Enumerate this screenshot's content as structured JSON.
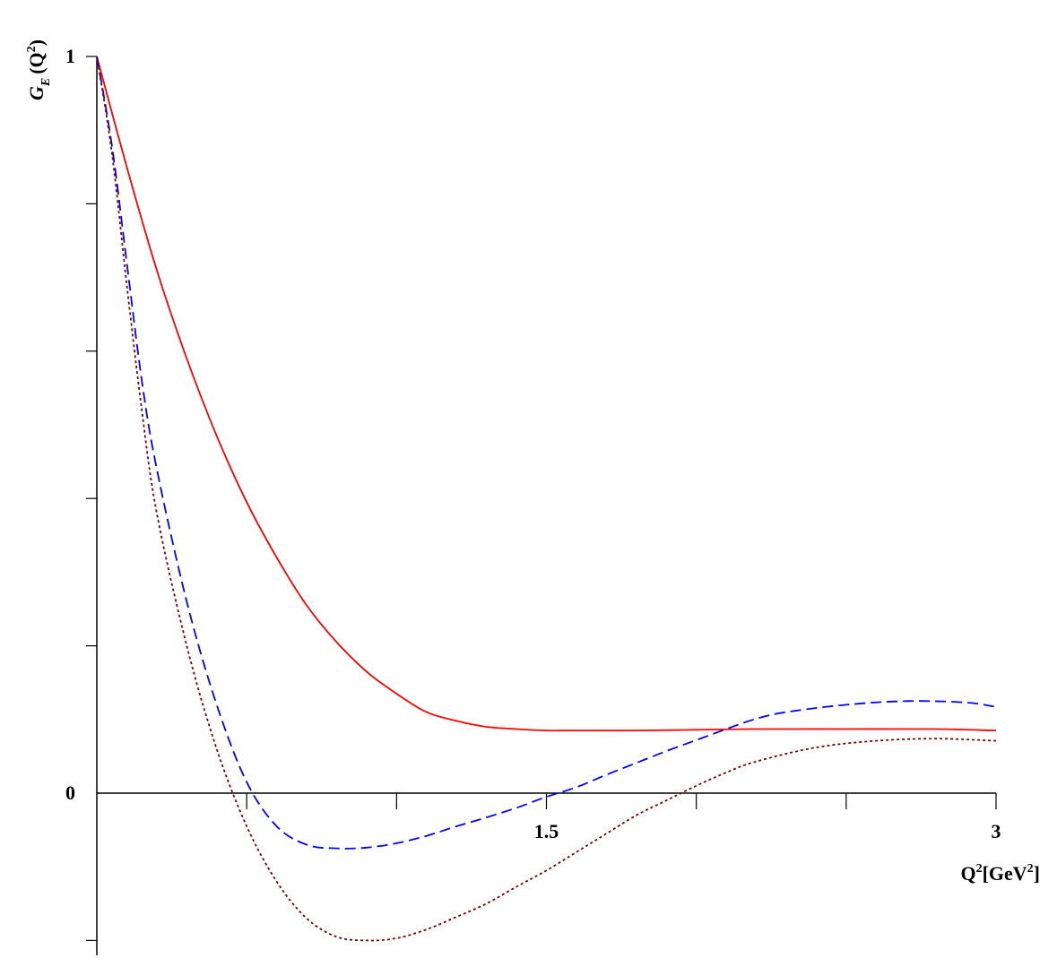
{
  "chart_data": {
    "type": "line",
    "title": "",
    "xlabel": {
      "base": "Q",
      "sup1": "2",
      "mid": "[GeV",
      "sup2": "2",
      "end": "]"
    },
    "ylabel": {
      "base": "G",
      "sub": "E",
      "open": "(Q",
      "sup": "2",
      "close": ")"
    },
    "xlim": [
      0,
      3
    ],
    "ylim": [
      -0.22,
      1
    ],
    "x_ticks": [
      0.5,
      1.0,
      1.5,
      2.0,
      2.5,
      3.0
    ],
    "x_tick_labels": [
      {
        "value": 1.5,
        "label": "1.5"
      },
      {
        "value": 3.0,
        "label": "3"
      }
    ],
    "y_ticks": [
      -0.2,
      0.2,
      0.4,
      0.6,
      0.8,
      1.0
    ],
    "y_tick_labels": [
      {
        "value": 0,
        "label": "0"
      },
      {
        "value": 1,
        "label": "1"
      }
    ],
    "grid": false,
    "legend": "none",
    "series": [
      {
        "color": "#ff0000",
        "dash": "solid",
        "x": [
          0,
          0.1,
          0.2,
          0.3,
          0.4,
          0.5,
          0.6,
          0.7,
          0.8,
          0.9,
          1.0,
          1.1,
          1.2,
          1.3,
          1.4,
          1.5,
          1.6,
          1.8,
          2.0,
          2.2,
          2.5,
          2.8,
          3.0
        ],
        "y": [
          1.0,
          0.85,
          0.71,
          0.59,
          0.485,
          0.395,
          0.32,
          0.255,
          0.205,
          0.165,
          0.135,
          0.11,
          0.098,
          0.09,
          0.087,
          0.085,
          0.085,
          0.085,
          0.086,
          0.087,
          0.087,
          0.087,
          0.085
        ]
      },
      {
        "color": "#0000ff",
        "dash": "dashed",
        "x": [
          0,
          0.05,
          0.1,
          0.15,
          0.2,
          0.3,
          0.4,
          0.5,
          0.6,
          0.7,
          0.8,
          0.9,
          1.0,
          1.1,
          1.2,
          1.3,
          1.4,
          1.5,
          1.6,
          1.7,
          1.8,
          1.9,
          2.0,
          2.1,
          2.2,
          2.3,
          2.5,
          2.7,
          2.9,
          3.0
        ],
        "y": [
          1.0,
          0.88,
          0.72,
          0.56,
          0.44,
          0.26,
          0.12,
          0.015,
          -0.045,
          -0.07,
          -0.075,
          -0.074,
          -0.068,
          -0.058,
          -0.045,
          -0.033,
          -0.02,
          -0.005,
          0.008,
          0.025,
          0.041,
          0.057,
          0.072,
          0.087,
          0.101,
          0.11,
          0.12,
          0.125,
          0.123,
          0.117
        ]
      },
      {
        "color": "#800000",
        "dash": "dotted",
        "x": [
          0,
          0.05,
          0.1,
          0.15,
          0.2,
          0.3,
          0.4,
          0.5,
          0.6,
          0.7,
          0.8,
          0.9,
          1.0,
          1.1,
          1.2,
          1.3,
          1.4,
          1.5,
          1.6,
          1.7,
          1.8,
          1.9,
          2.0,
          2.1,
          2.2,
          2.4,
          2.6,
          2.8,
          3.0
        ],
        "y": [
          1.0,
          0.87,
          0.69,
          0.52,
          0.38,
          0.2,
          0.06,
          -0.045,
          -0.12,
          -0.17,
          -0.195,
          -0.2,
          -0.197,
          -0.185,
          -0.168,
          -0.15,
          -0.127,
          -0.105,
          -0.08,
          -0.055,
          -0.03,
          -0.01,
          0.01,
          0.028,
          0.043,
          0.062,
          0.071,
          0.074,
          0.071
        ]
      }
    ]
  }
}
